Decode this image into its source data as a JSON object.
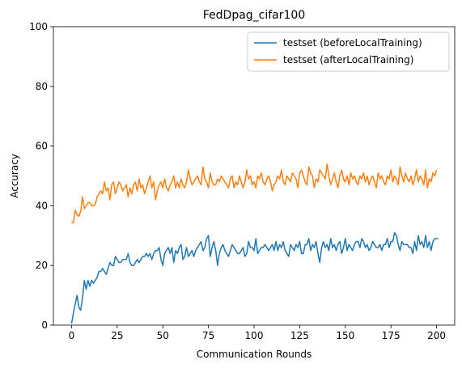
{
  "chart_data": {
    "type": "line",
    "title": "FedDpag_cifar100",
    "xlabel": "Communication Rounds",
    "ylabel": "Accuracy",
    "xlim": [
      -9.95,
      209.95
    ],
    "ylim": [
      0,
      100
    ],
    "xticks": [
      0,
      25,
      50,
      75,
      100,
      125,
      150,
      175,
      200
    ],
    "yticks": [
      0,
      20,
      40,
      60,
      80,
      100
    ],
    "grid": false,
    "legend_position": "top-right",
    "x_start": 0,
    "x_step": 1,
    "series": [
      {
        "name": "testset (beforeLocalTraining)",
        "color": "#1f77b4",
        "values": [
          0.5,
          4,
          7,
          10,
          6,
          5,
          9,
          15,
          12,
          15,
          13,
          15,
          14,
          15,
          16,
          18,
          18,
          19,
          18,
          17,
          19,
          21,
          20,
          20,
          23,
          22,
          21,
          21,
          22,
          22,
          22,
          24,
          21,
          20,
          20,
          21,
          22,
          21,
          22,
          23,
          23,
          24,
          23,
          24,
          22,
          24,
          25,
          25,
          26,
          22,
          20,
          24,
          25,
          26,
          24,
          26,
          21,
          25,
          24,
          26,
          27,
          22,
          23,
          26,
          23,
          24,
          25,
          23,
          25,
          26,
          27,
          28,
          25,
          26,
          29,
          30,
          23,
          26,
          28,
          25,
          20,
          24,
          26,
          27,
          25,
          24,
          23,
          25,
          27,
          26,
          25,
          24,
          24,
          25,
          26,
          23,
          24,
          28,
          26,
          26,
          25,
          29,
          24,
          25,
          26,
          26,
          27,
          26,
          25,
          26,
          27,
          25,
          28,
          25,
          27,
          26,
          28,
          25,
          24,
          23,
          27,
          26,
          25,
          27,
          26,
          28,
          24,
          24,
          27,
          27,
          29,
          25,
          27,
          26,
          28,
          24,
          21,
          26,
          28,
          26,
          27,
          25,
          29,
          26,
          27,
          25,
          27,
          28,
          24,
          26,
          29,
          25,
          27,
          26,
          25,
          27,
          28,
          28,
          26,
          29,
          28,
          26,
          27,
          25,
          26,
          28,
          27,
          26,
          26,
          27,
          25,
          27,
          27,
          29,
          26,
          28,
          28,
          31,
          30,
          27,
          25,
          28,
          27,
          27,
          27,
          26,
          26,
          24,
          28,
          25,
          30,
          27,
          28,
          26,
          30,
          26,
          28,
          25,
          28,
          29,
          29,
          29
        ]
      },
      {
        "name": "testset (afterLocalTraining)",
        "color": "#ff7f0e",
        "values": [
          34.5,
          34.3,
          38.5,
          37,
          36.5,
          38,
          43,
          39,
          40,
          41,
          41,
          40,
          40,
          40.5,
          43,
          44,
          45,
          44,
          48,
          45,
          46,
          42,
          47,
          48,
          44,
          46,
          48,
          47,
          45,
          46,
          47,
          43,
          46,
          44,
          47,
          48,
          45,
          49,
          46,
          47,
          44,
          46,
          48,
          50,
          46,
          48,
          42,
          45,
          47,
          48,
          46,
          49,
          46,
          45,
          47,
          48,
          50,
          46,
          48,
          46,
          49,
          47,
          46,
          48,
          52,
          49,
          47,
          48,
          49,
          50,
          48,
          47,
          53,
          49,
          48,
          46,
          51,
          48,
          47,
          47,
          49,
          48,
          50,
          49,
          48,
          47,
          46,
          49,
          50,
          46,
          48,
          47,
          50,
          48,
          46,
          48,
          52,
          49,
          50,
          47,
          48,
          46,
          50,
          49,
          51,
          48,
          47,
          49,
          50,
          48,
          45,
          47,
          48,
          50,
          49,
          52,
          48,
          47,
          50,
          49,
          48,
          51,
          50,
          49,
          46,
          51,
          52,
          50,
          48,
          47,
          53,
          51,
          50,
          46,
          49,
          48,
          52,
          51,
          50,
          49,
          54,
          50,
          47,
          49,
          51,
          48,
          46,
          50,
          52,
          49,
          48,
          50,
          47,
          51,
          49,
          50,
          48,
          47,
          50,
          49,
          51,
          48,
          50,
          47,
          49,
          50,
          48,
          46,
          51,
          49,
          50,
          48,
          47,
          50,
          49,
          52,
          48,
          50,
          49,
          47,
          53,
          50,
          48,
          51,
          49,
          48,
          50,
          47,
          49,
          52,
          48,
          50,
          49,
          47,
          52,
          46,
          49,
          48,
          51,
          50,
          52
        ]
      }
    ]
  }
}
